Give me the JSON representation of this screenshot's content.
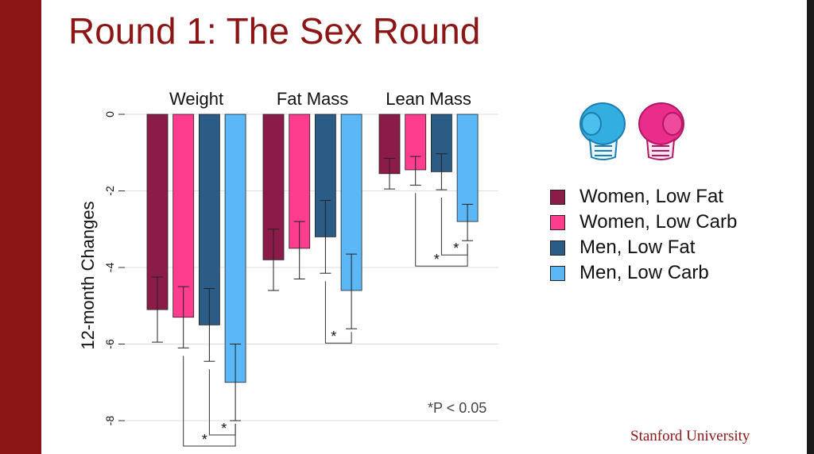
{
  "slide": {
    "title": "Round 1: The Sex Round",
    "footer": "Stanford University"
  },
  "colors": {
    "brand": "#8c1515",
    "women_low_fat": "#8b1c49",
    "women_low_carb": "#ff3d8f",
    "men_low_fat": "#2b5c86",
    "men_low_carb": "#5bb7f5"
  },
  "icons": [
    "blue-boxing-glove-icon",
    "pink-boxing-glove-icon"
  ],
  "chart_data": {
    "type": "bar",
    "title": "",
    "ylabel": "12-month Changes",
    "xlabel": "",
    "ylim": [
      -8,
      0
    ],
    "yticks": [
      0,
      -2,
      -4,
      -6,
      -8
    ],
    "ytick_labels": [
      "0",
      "-2",
      "-4",
      "-6",
      "-8"
    ],
    "grid": true,
    "categories": [
      "Weight",
      "Fat Mass",
      "Lean Mass"
    ],
    "series": [
      {
        "name": "Women, Low Fat",
        "color": "#8b1c49",
        "values": [
          -5.1,
          -3.8,
          -1.55
        ],
        "ci_low": [
          -5.95,
          -4.6,
          -1.95
        ],
        "ci_high": [
          -4.25,
          -3.0,
          -1.15
        ]
      },
      {
        "name": "Women, Low Carb",
        "color": "#ff3d8f",
        "values": [
          -5.3,
          -3.5,
          -1.45
        ],
        "ci_low": [
          -6.1,
          -4.3,
          -1.85
        ],
        "ci_high": [
          -4.5,
          -2.8,
          -1.1
        ]
      },
      {
        "name": "Men, Low Fat",
        "color": "#2b5c86",
        "values": [
          -5.5,
          -3.2,
          -1.5
        ],
        "ci_low": [
          -6.45,
          -4.15,
          -1.97
        ],
        "ci_high": [
          -4.55,
          -2.25,
          -1.03
        ]
      },
      {
        "name": "Men, Low Carb",
        "color": "#5bb7f5",
        "values": [
          -7.0,
          -4.6,
          -2.8
        ],
        "ci_low": [
          -8.0,
          -5.6,
          -3.3
        ],
        "ci_high": [
          -6.0,
          -3.65,
          -2.35
        ]
      }
    ],
    "significance": [
      {
        "category": "Weight",
        "from": "Women, Low Carb",
        "to": "Men, Low Carb",
        "label": "*"
      },
      {
        "category": "Weight",
        "from": "Men, Low Fat",
        "to": "Men, Low Carb",
        "label": "*"
      },
      {
        "category": "Fat Mass",
        "from": "Men, Low Fat",
        "to": "Men, Low Carb",
        "label": "*"
      },
      {
        "category": "Lean Mass",
        "from": "Women, Low Carb",
        "to": "Men, Low Carb",
        "label": "*"
      },
      {
        "category": "Lean Mass",
        "from": "Men, Low Fat",
        "to": "Men, Low Carb",
        "label": "*"
      }
    ],
    "annotation": "*P < 0.05",
    "legend_position": "right"
  }
}
